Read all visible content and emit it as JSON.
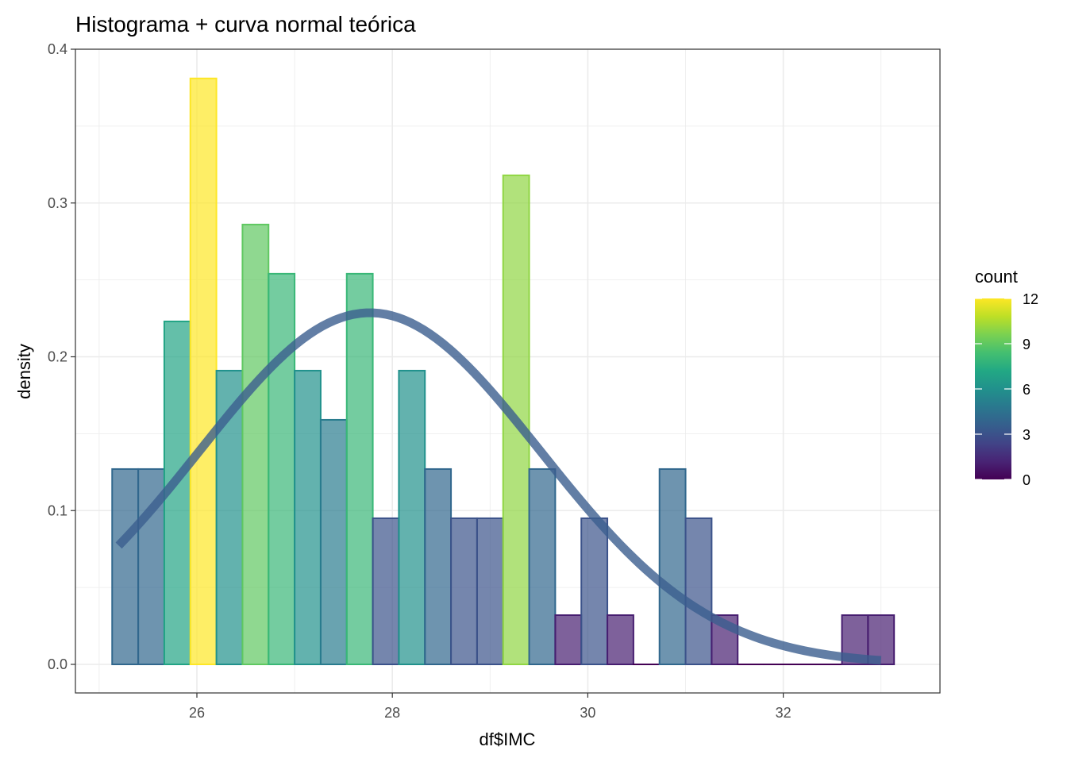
{
  "chart_data": {
    "type": "bar",
    "title": "Histograma + curva normal teórica",
    "xlabel": "df$IMC",
    "ylabel": "density",
    "xlim": [
      24.8,
      35.8
    ],
    "ylim": [
      -0.019,
      0.4
    ],
    "x_ticks": [
      26,
      28,
      30,
      32
    ],
    "y_ticks": [
      0.0,
      0.1,
      0.2,
      0.3,
      0.4
    ],
    "y_tick_labels": [
      "0.0",
      "0.1",
      "0.2",
      "0.3",
      "0.4"
    ],
    "bin_width": 0.2667,
    "first_bin_left": 25.133,
    "counts": [
      4,
      4,
      7,
      12,
      6,
      9,
      8,
      6,
      5,
      8,
      3,
      6,
      4,
      3,
      3,
      10,
      4,
      1,
      3,
      1,
      0,
      4,
      3,
      1,
      0,
      0,
      0,
      0,
      1,
      1
    ],
    "densities": [
      0.127,
      0.127,
      0.223,
      0.381,
      0.191,
      0.286,
      0.254,
      0.191,
      0.159,
      0.254,
      0.095,
      0.191,
      0.127,
      0.095,
      0.095,
      0.318,
      0.127,
      0.032,
      0.095,
      0.032,
      0.0,
      0.127,
      0.095,
      0.032,
      0.0,
      0.0,
      0.0,
      0.0,
      0.032,
      0.032
    ],
    "normal_curve": {
      "mean": 27.77,
      "sd": 1.745,
      "x_from": 25.2,
      "x_to": 33.0,
      "color": "#3b5e8f"
    },
    "legend": {
      "title": "count",
      "position": "right",
      "min": 0,
      "max": 12,
      "ticks": [
        0,
        3,
        6,
        9,
        12
      ],
      "tick_labels": [
        "0",
        "3",
        "6",
        "9",
        "12"
      ]
    },
    "colorscale": "viridis",
    "grid": true,
    "theme": "bw"
  }
}
